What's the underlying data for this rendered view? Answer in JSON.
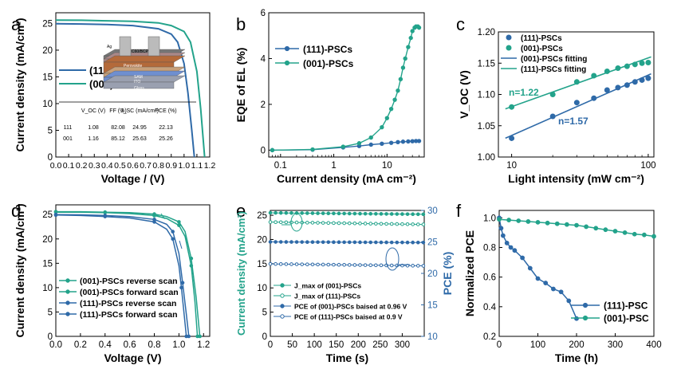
{
  "colors": {
    "blue": "#2f6aa8",
    "teal": "#23a38b",
    "axis": "#000000",
    "grid_box": "#333333"
  },
  "panels": [
    {
      "letter": "a"
    },
    {
      "letter": "b"
    },
    {
      "letter": "c"
    },
    {
      "letter": "d"
    },
    {
      "letter": "e"
    },
    {
      "letter": "f"
    }
  ],
  "inset_a": {
    "header": [
      "V_OC (V)",
      "FF (%)",
      "J_SC (mA/cm²)",
      "PCE (%)"
    ],
    "rows": [
      [
        "111",
        "1.08",
        "82.08",
        "24.95",
        "22.13"
      ],
      [
        "001",
        "1.16",
        "85.12",
        "25.63",
        "25.26"
      ]
    ],
    "device_layers": [
      "Ag",
      "C60/BCP",
      "Perovskite",
      "SAM",
      "ITO",
      "Glass"
    ]
  },
  "chart_data": [
    {
      "panel": "a",
      "type": "line",
      "xlabel": "Voltage / (V)",
      "ylabel": "Current density (mA/cm²)",
      "xlim": [
        0,
        1.2
      ],
      "ylim": [
        0,
        27
      ],
      "xticks": [
        "0.0",
        "0.1",
        "0.2",
        "0.3",
        "0.4",
        "0.5",
        "0.6",
        "0.7",
        "0.8",
        "0.9",
        "1.0",
        "1.1",
        "1.2"
      ],
      "yticks": [
        "0",
        "5",
        "10",
        "15",
        "20",
        "25"
      ],
      "series": [
        {
          "name": "(111)",
          "color": "blue",
          "x": [
            0,
            0.2,
            0.4,
            0.6,
            0.8,
            0.9,
            0.95,
            1.0,
            1.03,
            1.06,
            1.08
          ],
          "y": [
            24.95,
            24.9,
            24.8,
            24.6,
            24.0,
            23.0,
            21.5,
            17.5,
            12.0,
            5.0,
            0
          ]
        },
        {
          "name": "(001)",
          "color": "teal",
          "x": [
            0,
            0.2,
            0.4,
            0.6,
            0.8,
            0.9,
            1.0,
            1.05,
            1.1,
            1.13,
            1.16
          ],
          "y": [
            25.63,
            25.6,
            25.5,
            25.4,
            25.1,
            24.6,
            23.5,
            21.5,
            16.0,
            9.0,
            0
          ]
        }
      ]
    },
    {
      "panel": "b",
      "type": "line",
      "xlabel": "Current density (mA cm⁻²)",
      "ylabel": "EQE of EL (%)",
      "xscale": "log",
      "xlim": [
        0.06,
        50
      ],
      "ylim": [
        -0.3,
        6
      ],
      "xticks": [
        "0.1",
        "1",
        "10"
      ],
      "yticks": [
        "0",
        "2",
        "4",
        "6"
      ],
      "series": [
        {
          "name": "(111)-PSCs",
          "color": "blue",
          "x": [
            0.07,
            0.4,
            1.5,
            3,
            5,
            8,
            12,
            16,
            20,
            25,
            30,
            35,
            40
          ],
          "y": [
            0,
            0.02,
            0.12,
            0.18,
            0.24,
            0.28,
            0.32,
            0.35,
            0.37,
            0.38,
            0.39,
            0.4,
            0.4
          ]
        },
        {
          "name": "(001)-PSCs",
          "color": "teal",
          "x": [
            0.07,
            0.4,
            1.5,
            3,
            5,
            8,
            10,
            12,
            14,
            16,
            18,
            20,
            22,
            25,
            28,
            30,
            33,
            35,
            38,
            40
          ],
          "y": [
            0,
            0.03,
            0.15,
            0.3,
            0.55,
            1.0,
            1.4,
            1.8,
            2.2,
            2.6,
            3.1,
            3.6,
            4.0,
            4.5,
            4.9,
            5.2,
            5.35,
            5.4,
            5.4,
            5.35
          ]
        }
      ]
    },
    {
      "panel": "c",
      "type": "scatter",
      "xlabel": "Light intensity (mW cm⁻²)",
      "ylabel": "V_OC (V)",
      "xscale": "log",
      "xlim": [
        8,
        110
      ],
      "ylim": [
        1.0,
        1.2
      ],
      "xticks": [
        "10",
        "100"
      ],
      "yticks": [
        "1.00",
        "1.05",
        "1.10",
        "1.15",
        "1.20"
      ],
      "legend": [
        "(111)-PSCs",
        "(001)-PSCs",
        "(001)-PSCs fitting",
        "(111)-PSCs fitting"
      ],
      "annotations": [
        "n=1.22",
        "n=1.57"
      ],
      "series": [
        {
          "name": "(111)-PSCs",
          "color": "blue",
          "x": [
            10,
            20,
            30,
            40,
            50,
            60,
            70,
            80,
            90,
            100
          ],
          "y": [
            1.03,
            1.065,
            1.087,
            1.094,
            1.107,
            1.111,
            1.115,
            1.12,
            1.123,
            1.126
          ]
        },
        {
          "name": "(001)-PSCs",
          "color": "teal",
          "x": [
            10,
            20,
            30,
            40,
            50,
            60,
            70,
            80,
            90,
            100
          ],
          "y": [
            1.08,
            1.1,
            1.12,
            1.13,
            1.137,
            1.142,
            1.145,
            1.148,
            1.15,
            1.151
          ]
        }
      ],
      "fits": [
        {
          "color": "teal",
          "x": [
            9,
            105
          ],
          "y": [
            1.077,
            1.16
          ]
        },
        {
          "color": "blue",
          "x": [
            9,
            105
          ],
          "y": [
            1.03,
            1.133
          ]
        }
      ]
    },
    {
      "panel": "d",
      "type": "line",
      "xlabel": "Voltage (V)",
      "ylabel": "Current density (mA/cm²)",
      "xlim": [
        0,
        1.25
      ],
      "ylim": [
        0,
        27
      ],
      "xticks": [
        "0.0",
        "0.2",
        "0.4",
        "0.6",
        "0.8",
        "1.0",
        "1.2"
      ],
      "yticks": [
        "0",
        "5",
        "10",
        "15",
        "20",
        "25"
      ],
      "series": [
        {
          "name": "(001)-PSCs reverse scan",
          "color": "teal",
          "x": [
            0,
            0.2,
            0.4,
            0.6,
            0.8,
            0.9,
            1.0,
            1.05,
            1.1,
            1.14,
            1.17
          ],
          "y": [
            25.6,
            25.6,
            25.5,
            25.4,
            25.1,
            24.6,
            23.5,
            21.5,
            16.0,
            8.0,
            0
          ]
        },
        {
          "name": "(001)-PSCs forward scan",
          "color": "teal",
          "x": [
            0,
            0.2,
            0.4,
            0.6,
            0.8,
            0.9,
            1.0,
            1.05,
            1.1,
            1.13,
            1.15
          ],
          "y": [
            25.5,
            25.5,
            25.4,
            25.2,
            24.8,
            24.2,
            22.8,
            20.5,
            14.5,
            7.0,
            0
          ]
        },
        {
          "name": "(111)-PSCs reverse scan",
          "color": "blue",
          "x": [
            0,
            0.2,
            0.4,
            0.6,
            0.8,
            0.9,
            0.95,
            1.0,
            1.03,
            1.06,
            1.08
          ],
          "y": [
            25.0,
            24.95,
            24.8,
            24.6,
            24.0,
            23.0,
            21.5,
            17.0,
            11.0,
            4.5,
            0
          ]
        },
        {
          "name": "(111)-PSCs forward scan",
          "color": "blue",
          "x": [
            0,
            0.2,
            0.4,
            0.6,
            0.8,
            0.9,
            0.95,
            1.0,
            1.02,
            1.04,
            1.06
          ],
          "y": [
            24.9,
            24.8,
            24.6,
            24.3,
            23.5,
            22.0,
            20.0,
            14.5,
            10.0,
            5.0,
            0
          ]
        }
      ]
    },
    {
      "panel": "e",
      "type": "line",
      "xlabel": "Time (s)",
      "ylabel": "Current density (mA/cm²)",
      "ylabel2": "PCE (%)",
      "xlim": [
        0,
        350
      ],
      "ylim": [
        0,
        26
      ],
      "ylim2": [
        10,
        30
      ],
      "xticks": [
        "0",
        "50",
        "100",
        "150",
        "200",
        "250",
        "300"
      ],
      "yticks": [
        "0",
        "5",
        "10",
        "15",
        "20",
        "25"
      ],
      "yticks2": [
        "10",
        "15",
        "20",
        "25",
        "30"
      ],
      "series": [
        {
          "name": "J_max of (001)-PSCs",
          "color": "teal",
          "axis": "left",
          "filled": true,
          "x": [
            0,
            350
          ],
          "y": [
            25.5,
            25.2
          ]
        },
        {
          "name": "J_max of (111)-PSCs",
          "color": "teal",
          "axis": "left",
          "filled": false,
          "x": [
            0,
            350
          ],
          "y": [
            23.6,
            23.1
          ]
        },
        {
          "name": "PCE of (001)-PSCs baised at 0.96 V",
          "color": "blue",
          "axis": "right",
          "filled": true,
          "x": [
            0,
            350
          ],
          "y": [
            25.0,
            24.9
          ]
        },
        {
          "name": "PCE of (111)-PSCs baised at 0.9 V",
          "color": "blue",
          "axis": "right",
          "filled": false,
          "x": [
            0,
            350
          ],
          "y": [
            21.5,
            21.2
          ]
        }
      ]
    },
    {
      "panel": "f",
      "type": "line",
      "xlabel": "Time (h)",
      "ylabel": "Normalized PCE",
      "xlim": [
        0,
        400
      ],
      "ylim": [
        0.2,
        1.05
      ],
      "xticks": [
        "0",
        "100",
        "200",
        "300",
        "400"
      ],
      "yticks": [
        "0.2",
        "0.4",
        "0.6",
        "0.8",
        "1.0"
      ],
      "series": [
        {
          "name": "(111)-PSC",
          "color": "blue",
          "x": [
            0,
            5,
            10,
            20,
            30,
            40,
            60,
            80,
            100,
            120,
            140,
            160,
            180,
            200
          ],
          "y": [
            1.0,
            0.93,
            0.88,
            0.83,
            0.8,
            0.78,
            0.73,
            0.66,
            0.59,
            0.56,
            0.52,
            0.5,
            0.44,
            0.32
          ]
        },
        {
          "name": "(001)-PSC",
          "color": "teal",
          "x": [
            0,
            25,
            50,
            75,
            100,
            125,
            150,
            175,
            200,
            225,
            250,
            275,
            300,
            325,
            350,
            375,
            400
          ],
          "y": [
            0.99,
            0.985,
            0.98,
            0.975,
            0.97,
            0.965,
            0.96,
            0.955,
            0.95,
            0.94,
            0.93,
            0.92,
            0.91,
            0.9,
            0.89,
            0.885,
            0.875
          ]
        }
      ]
    }
  ]
}
